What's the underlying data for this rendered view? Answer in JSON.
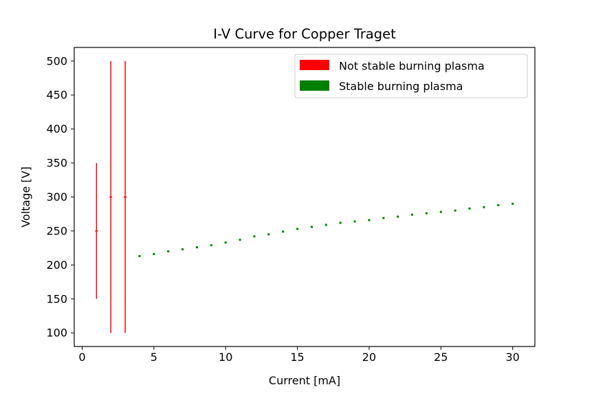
{
  "chart_data": {
    "type": "scatter",
    "title": "I-V Curve for Copper Traget",
    "xlabel": "Current [mA]",
    "ylabel": "Voltage [V]",
    "xlim": [
      -0.55,
      31.55
    ],
    "ylim": [
      80,
      520
    ],
    "xticks": [
      0,
      5,
      10,
      15,
      20,
      25,
      30
    ],
    "yticks": [
      100,
      150,
      200,
      250,
      300,
      350,
      400,
      450,
      500
    ],
    "grid": false,
    "legend_position": "top-right",
    "series": [
      {
        "name": "Not stable burning plasma",
        "color": "#ff0000",
        "style": "errorbar",
        "points": [
          {
            "x": 1,
            "y": 250,
            "ymin": 150,
            "ymax": 350
          },
          {
            "x": 2,
            "y": 300,
            "ymin": 100,
            "ymax": 500
          },
          {
            "x": 3,
            "y": 300,
            "ymin": 100,
            "ymax": 500
          }
        ]
      },
      {
        "name": "Stable burning plasma",
        "color": "#008000",
        "style": "points",
        "points": [
          {
            "x": 4,
            "y": 213
          },
          {
            "x": 5,
            "y": 216
          },
          {
            "x": 6,
            "y": 220
          },
          {
            "x": 7,
            "y": 223
          },
          {
            "x": 8,
            "y": 226
          },
          {
            "x": 9,
            "y": 229
          },
          {
            "x": 10,
            "y": 233
          },
          {
            "x": 11,
            "y": 237
          },
          {
            "x": 12,
            "y": 242
          },
          {
            "x": 13,
            "y": 245
          },
          {
            "x": 14,
            "y": 249
          },
          {
            "x": 15,
            "y": 253
          },
          {
            "x": 16,
            "y": 256
          },
          {
            "x": 17,
            "y": 259
          },
          {
            "x": 18,
            "y": 262
          },
          {
            "x": 19,
            "y": 264
          },
          {
            "x": 20,
            "y": 266
          },
          {
            "x": 21,
            "y": 269
          },
          {
            "x": 22,
            "y": 271
          },
          {
            "x": 23,
            "y": 274
          },
          {
            "x": 24,
            "y": 276
          },
          {
            "x": 25,
            "y": 278
          },
          {
            "x": 26,
            "y": 280
          },
          {
            "x": 27,
            "y": 283
          },
          {
            "x": 28,
            "y": 285
          },
          {
            "x": 29,
            "y": 288
          },
          {
            "x": 30,
            "y": 290
          }
        ]
      }
    ]
  }
}
